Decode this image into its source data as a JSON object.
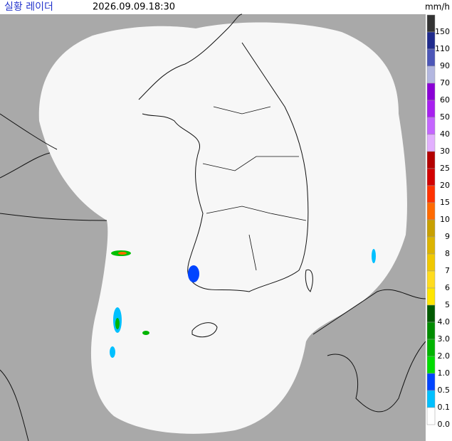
{
  "header": {
    "title": "실황 레이더",
    "time": "2026.09.09.18:30",
    "unit": "mm/h"
  },
  "legend": {
    "labels": [
      "150",
      "110",
      "90",
      "70",
      "60",
      "50",
      "40",
      "30",
      "25",
      "20",
      "15",
      "10",
      "9",
      "8",
      "7",
      "6",
      "5",
      "4.0",
      "3.0",
      "2.0",
      "1.0",
      "0.5",
      "0.1",
      "0.0"
    ],
    "colors": [
      "#333333",
      "#1f2a8c",
      "#4c56b8",
      "#b3b7e0",
      "#8a00d6",
      "#a820f0",
      "#c466ff",
      "#e2b0ff",
      "#b40000",
      "#d20000",
      "#ff3200",
      "#ff6a00",
      "#c8a000",
      "#dcb400",
      "#f0c800",
      "#ffdc1f",
      "#ffe600",
      "#005a00",
      "#008c00",
      "#00b400",
      "#00dc00",
      "#0044ff",
      "#00c0ff",
      "#ffffff"
    ]
  }
}
